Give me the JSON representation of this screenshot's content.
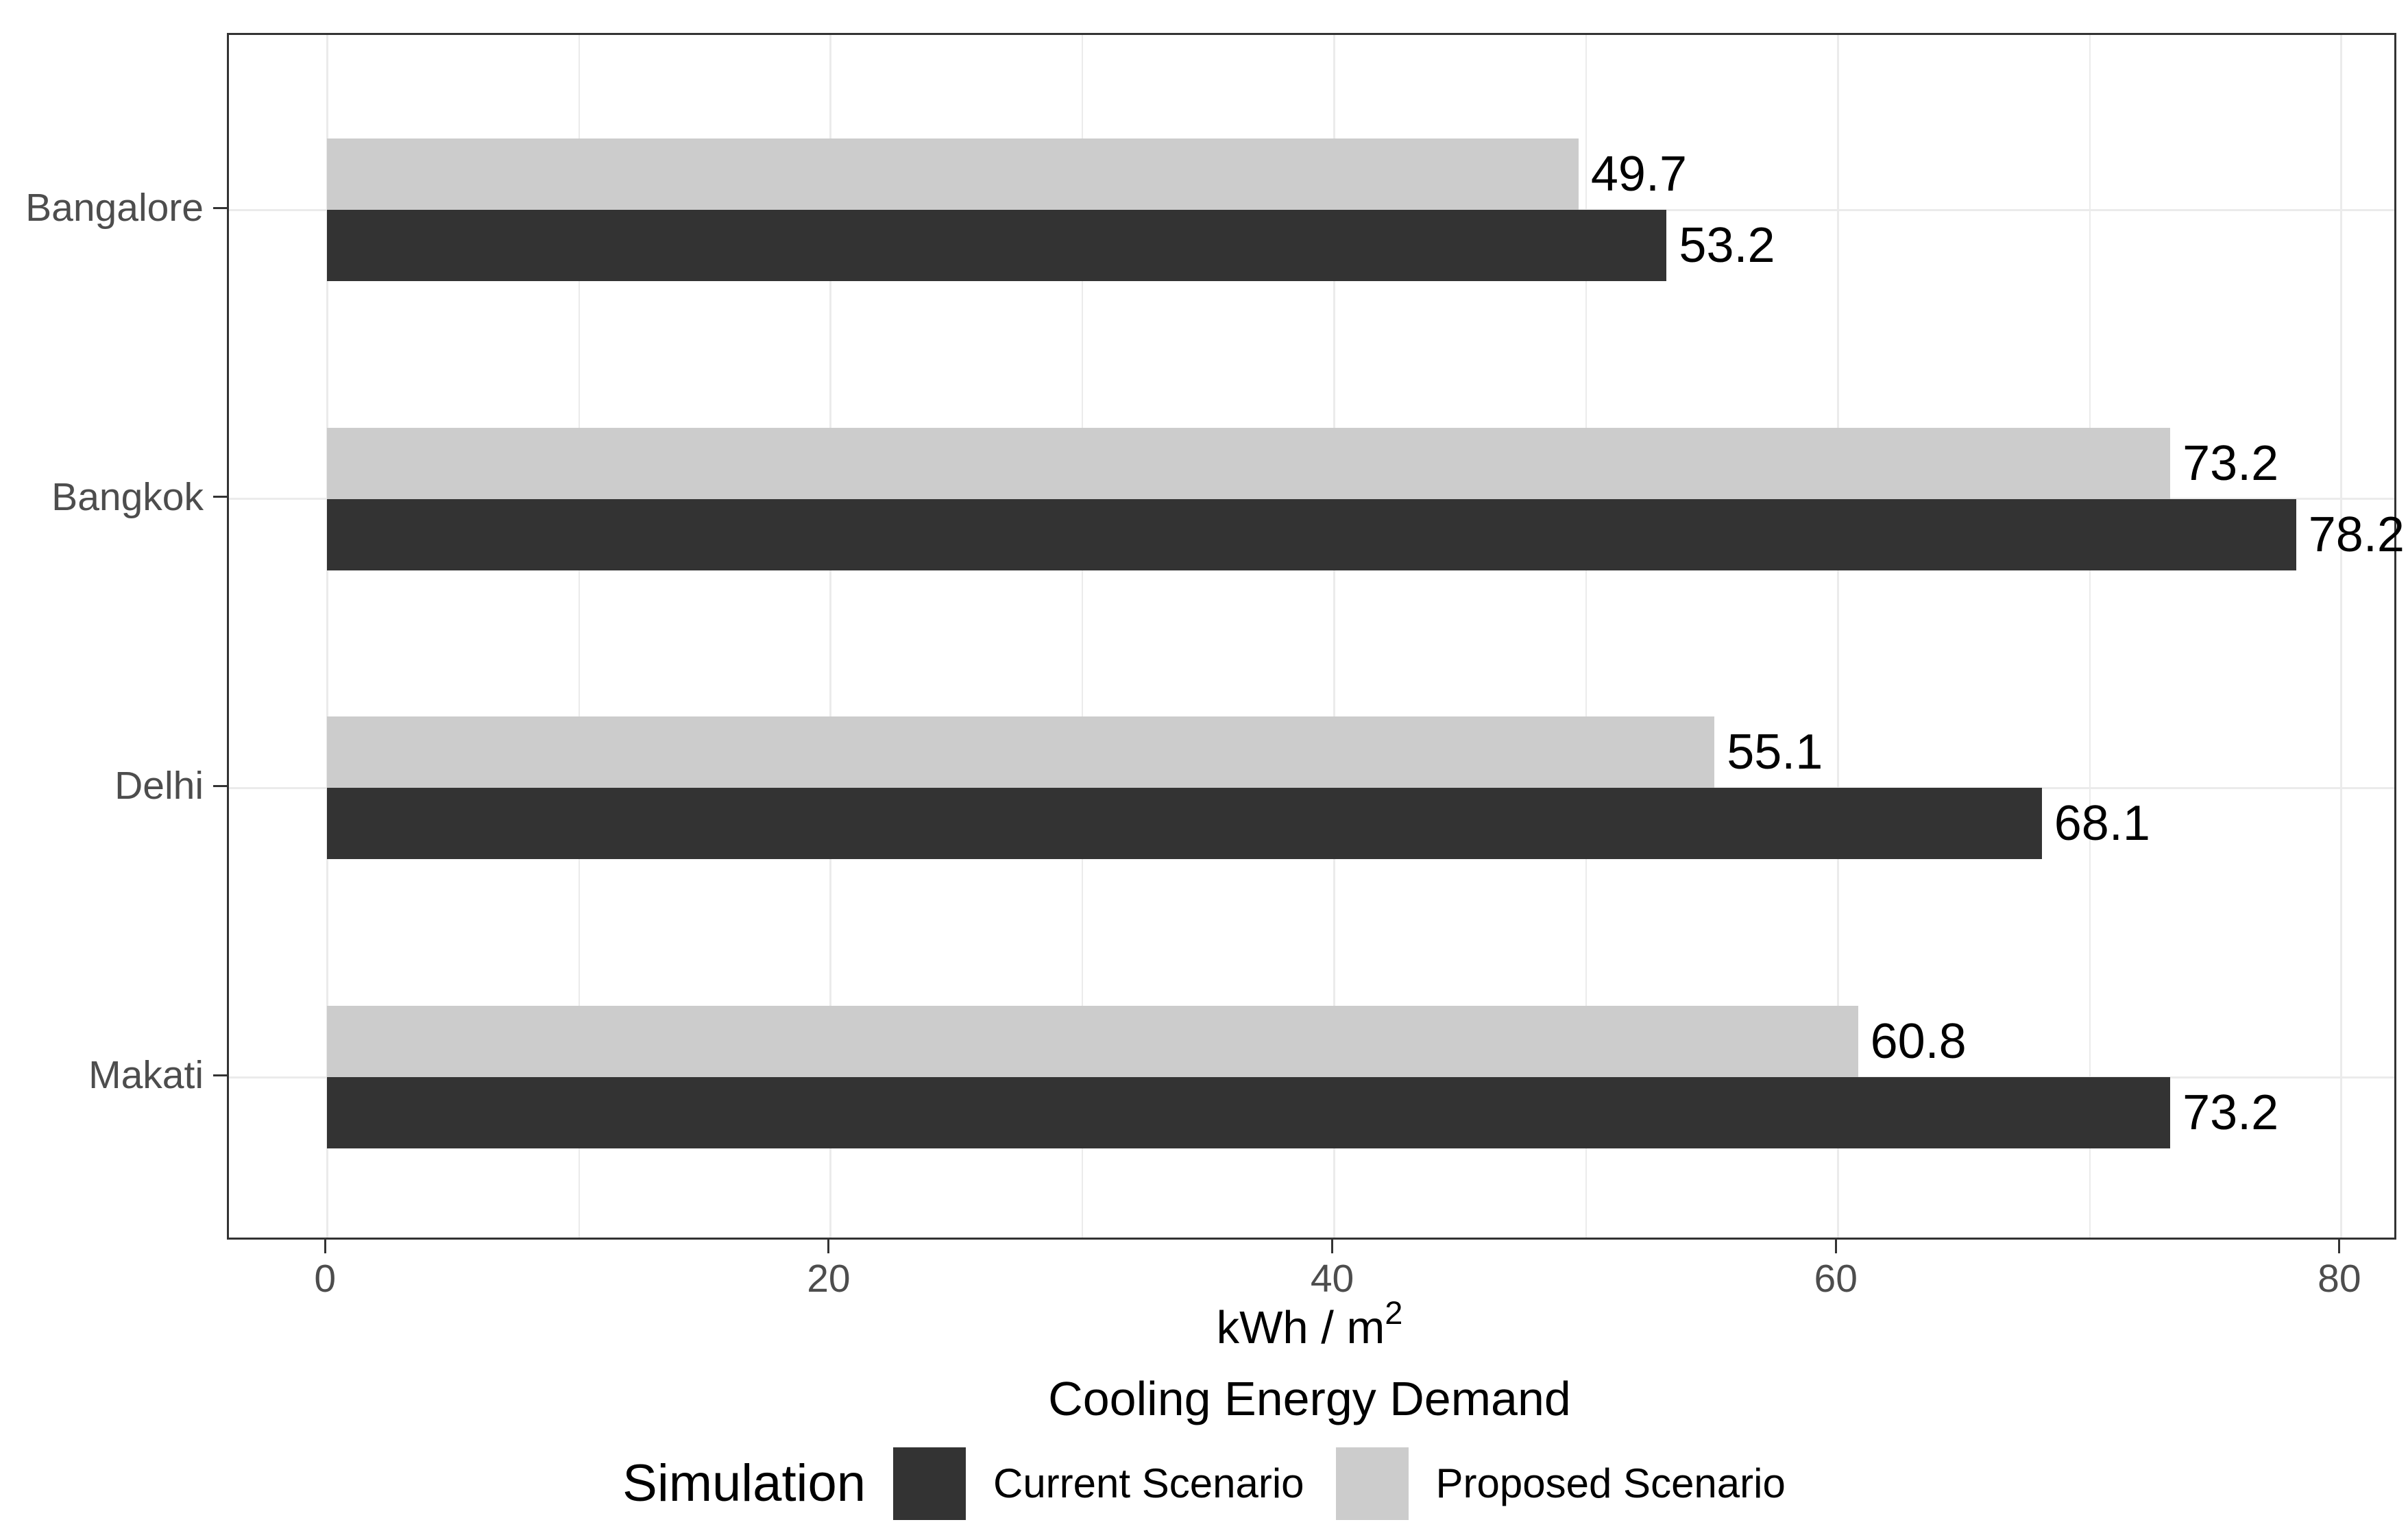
{
  "chart": {
    "legend_title": "Simulation",
    "axis_title_base": "kWh / m",
    "axis_title_sup": "2",
    "subtitle": "Cooling Energy Demand",
    "colors": {
      "current_scenario": "#333333",
      "proposed_scenario": "#CCCCCC",
      "gridline": "#EBEBEB",
      "panel_border": "#333333",
      "axis_text": "#4D4D4D",
      "value_label_text": "#000000"
    }
  },
  "chart_data": {
    "type": "bar",
    "orientation": "horizontal",
    "title": "",
    "xlabel": "kWh / m²",
    "xlabel_secondary": "Cooling Energy Demand",
    "ylabel": "",
    "legend_title": "Simulation",
    "legend_position": "bottom",
    "grid": true,
    "categories": [
      "Bangalore",
      "Bangkok",
      "Delhi",
      "Makati"
    ],
    "series": [
      {
        "name": "Current Scenario",
        "color": "#333333",
        "values": [
          53.2,
          78.2,
          68.1,
          73.2
        ]
      },
      {
        "name": "Proposed Scenario",
        "color": "#CCCCCC",
        "values": [
          49.7,
          73.2,
          55.1,
          60.8
        ]
      }
    ],
    "value_labels_shown": true,
    "x_ticks": [
      0,
      20,
      40,
      60,
      80
    ],
    "x_minor_ticks": [
      10,
      30,
      50,
      70
    ],
    "xlim": [
      -3.9,
      82.1
    ]
  }
}
